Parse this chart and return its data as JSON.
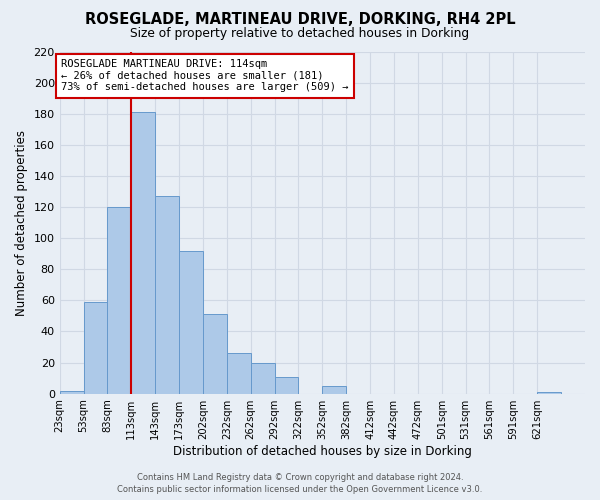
{
  "title": "ROSEGLADE, MARTINEAU DRIVE, DORKING, RH4 2PL",
  "subtitle": "Size of property relative to detached houses in Dorking",
  "xlabel": "Distribution of detached houses by size in Dorking",
  "ylabel": "Number of detached properties",
  "bins": [
    "23sqm",
    "53sqm",
    "83sqm",
    "113sqm",
    "143sqm",
    "173sqm",
    "202sqm",
    "232sqm",
    "262sqm",
    "292sqm",
    "322sqm",
    "352sqm",
    "382sqm",
    "412sqm",
    "442sqm",
    "472sqm",
    "501sqm",
    "531sqm",
    "561sqm",
    "591sqm",
    "621sqm"
  ],
  "bin_edges": [
    0,
    1,
    2,
    3,
    4,
    5,
    6,
    7,
    8,
    9,
    10,
    11,
    12,
    13,
    14,
    15,
    16,
    17,
    18,
    19,
    20,
    21
  ],
  "counts": [
    2,
    59,
    120,
    181,
    127,
    92,
    51,
    26,
    20,
    11,
    0,
    5,
    0,
    0,
    0,
    0,
    0,
    0,
    0,
    0,
    1
  ],
  "bar_color": "#adc9e8",
  "bar_edge_color": "#6699cc",
  "property_bin_index": 3,
  "vline_color": "#cc0000",
  "annotation_title": "ROSEGLADE MARTINEAU DRIVE: 114sqm",
  "annotation_line1": "← 26% of detached houses are smaller (181)",
  "annotation_line2": "73% of semi-detached houses are larger (509) →",
  "annotation_box_color": "#ffffff",
  "annotation_box_edge": "#cc0000",
  "ylim": [
    0,
    220
  ],
  "yticks": [
    0,
    20,
    40,
    60,
    80,
    100,
    120,
    140,
    160,
    180,
    200,
    220
  ],
  "grid_color": "#d0d8e4",
  "bg_color": "#e8eef5",
  "footer1": "Contains HM Land Registry data © Crown copyright and database right 2024.",
  "footer2": "Contains public sector information licensed under the Open Government Licence v3.0."
}
